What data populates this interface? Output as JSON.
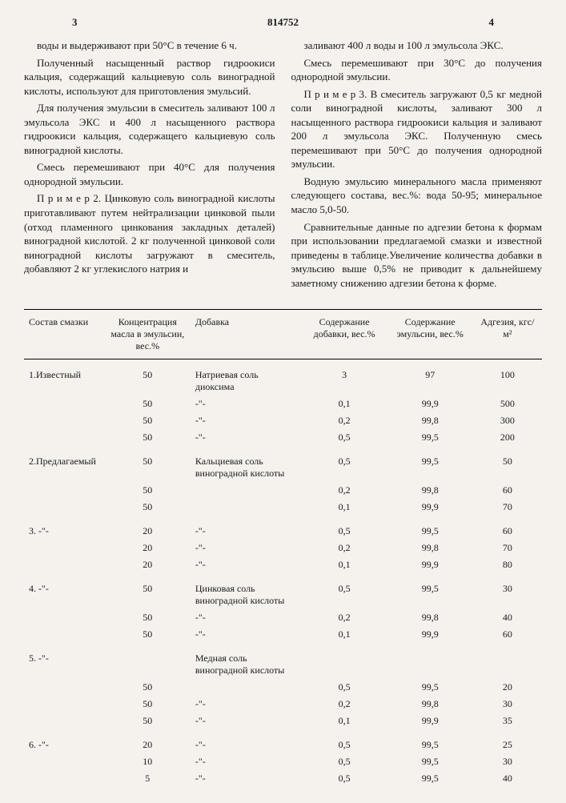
{
  "header": {
    "left_page": "3",
    "doc_number": "814752",
    "right_page": "4"
  },
  "left_column": {
    "p1": "воды и выдерживают при 50°С в течение 6 ч.",
    "p2": "Полученный насыщенный раствор гидроокиси кальция, содержащий кальциевую соль виноградной кислоты, используют для приготовления эмульсий.",
    "p3": "Для получения эмульсии в смеситель заливают 100 л эмульсола ЭКС и 400 л насыщенного раствора гидроокиси кальция, содержащего кальциевую соль виноградной кислоты.",
    "p4": "Смесь перемешивают при 40°С для получения однородной эмульсии.",
    "p5": "П р и м е р 2. Цинковую соль виноградной кислоты приготавливают путем нейтрализации цинковой пыли (отход пламенного цинкования закладных деталей) виноградной кислотой. 2 кг полученной цинковой соли виноградной кислоты загружают в смеситель, добавляют 2 кг углекислого натрия и"
  },
  "right_column": {
    "p1": "заливают 400 л воды и 100 л эмульсола ЭКС.",
    "p2": "Смесь перемешивают при 30°С до получения однородной эмульсии.",
    "p3": "П р и м е р 3. В смеситель загружают 0,5 кг медной соли виноградной кислоты, заливают 300 л насыщенного раствора гидроокиси кальция и заливают 200 л эмульсола ЭКС. Полученную смесь перемешивают при 50°С до получения однородной эмульсии.",
    "p4": "Водную эмульсию минерального масла применяют следующего состава, вес.%: вода 50-95; минеральное масло 5,0-50.",
    "p5": "Сравнительные данные по адгезии бетона к формам при использовании предлагаемой смазки и известной приведены в таблице.Увеличение количества добавки в эмульсию выше 0,5% не приводит к дальнейшему заметному снижению адгезии бетона к форме."
  },
  "table": {
    "headers": {
      "c1": "Состав смазки",
      "c2": "Концентрация масла в эмульсии, вес.%",
      "c3": "Добавка",
      "c4": "Содержание добавки, вес.%",
      "c5": "Содержание эмульсии, вес.%",
      "c6": "Адгезия, кгс/м²"
    },
    "rows": [
      {
        "c1": "1.Известный",
        "c2": "50",
        "c3": "Натриевая соль диоксима",
        "c4": "3",
        "c5": "97",
        "c6": "100",
        "group": true
      },
      {
        "c1": "",
        "c2": "50",
        "c3": "-\"-",
        "c4": "0,1",
        "c5": "99,9",
        "c6": "500"
      },
      {
        "c1": "",
        "c2": "50",
        "c3": "-\"-",
        "c4": "0,2",
        "c5": "99,8",
        "c6": "300"
      },
      {
        "c1": "",
        "c2": "50",
        "c3": "-\"-",
        "c4": "0,5",
        "c5": "99,5",
        "c6": "200"
      },
      {
        "c1": "2.Предлагаемый",
        "c2": "50",
        "c3": "Кальциевая соль виноградной кислоты",
        "c4": "0,5",
        "c5": "99,5",
        "c6": "50",
        "group": true
      },
      {
        "c1": "",
        "c2": "50",
        "c3": "",
        "c4": "0,2",
        "c5": "99,8",
        "c6": "60"
      },
      {
        "c1": "",
        "c2": "50",
        "c3": "",
        "c4": "0,1",
        "c5": "99,9",
        "c6": "70"
      },
      {
        "c1": "3. -\"-",
        "c2": "20",
        "c3": "-\"-",
        "c4": "0,5",
        "c5": "99,5",
        "c6": "60",
        "group": true
      },
      {
        "c1": "",
        "c2": "20",
        "c3": "-\"-",
        "c4": "0,2",
        "c5": "99,8",
        "c6": "70"
      },
      {
        "c1": "",
        "c2": "20",
        "c3": "-\"-",
        "c4": "0,1",
        "c5": "99,9",
        "c6": "80"
      },
      {
        "c1": "4. -\"-",
        "c2": "50",
        "c3": "Цинковая соль виноградной кислоты",
        "c4": "0,5",
        "c5": "99,5",
        "c6": "30",
        "group": true
      },
      {
        "c1": "",
        "c2": "50",
        "c3": "-\"-",
        "c4": "0,2",
        "c5": "99,8",
        "c6": "40"
      },
      {
        "c1": "",
        "c2": "50",
        "c3": "-\"-",
        "c4": "0,1",
        "c5": "99,9",
        "c6": "60"
      },
      {
        "c1": "5. -\"-",
        "c2": "",
        "c3": "Медная соль виноградной кислоты",
        "c4": "",
        "c5": "",
        "c6": "",
        "group": true
      },
      {
        "c1": "",
        "c2": "50",
        "c3": "",
        "c4": "0,5",
        "c5": "99,5",
        "c6": "20"
      },
      {
        "c1": "",
        "c2": "50",
        "c3": "-\"-",
        "c4": "0,2",
        "c5": "99,8",
        "c6": "30"
      },
      {
        "c1": "",
        "c2": "50",
        "c3": "-\"-",
        "c4": "0,1",
        "c5": "99,9",
        "c6": "35"
      },
      {
        "c1": "6. -\"-",
        "c2": "20",
        "c3": "-\"-",
        "c4": "0,5",
        "c5": "99,5",
        "c6": "25",
        "group": true
      },
      {
        "c1": "",
        "c2": "10",
        "c3": "-\"-",
        "c4": "0,5",
        "c5": "99,5",
        "c6": "30"
      },
      {
        "c1": "",
        "c2": "5",
        "c3": "-\"-",
        "c4": "0,5",
        "c5": "99,5",
        "c6": "40"
      }
    ]
  }
}
